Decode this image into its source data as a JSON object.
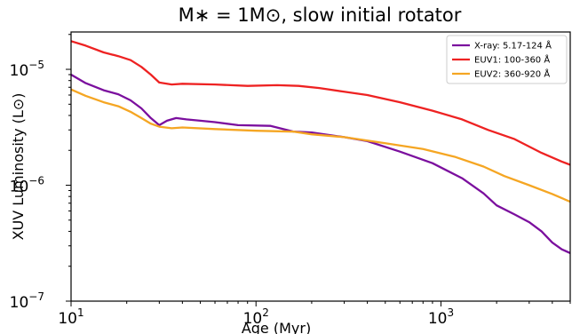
{
  "chart_data": {
    "type": "line",
    "title": "M∗ = 1M⊙, slow initial rotator",
    "xlabel": "Age (Myr)",
    "ylabel": "XUV Luminosity (L⊙)",
    "xscale": "log",
    "yscale": "log",
    "xlim": [
      10,
      5000
    ],
    "ylim": [
      1e-07,
      2.1e-05
    ],
    "grid": false,
    "legend_position": "top-right",
    "x_ticks": [
      {
        "value": 10,
        "base": "10",
        "exp": "1"
      },
      {
        "value": 100,
        "base": "10",
        "exp": "2"
      },
      {
        "value": 1000,
        "base": "10",
        "exp": "3"
      }
    ],
    "y_ticks": [
      {
        "value": 1e-07,
        "base": "10",
        "exp": "−7"
      },
      {
        "value": 1e-06,
        "base": "10",
        "exp": "−6"
      },
      {
        "value": 1e-05,
        "base": "10",
        "exp": "−5"
      }
    ],
    "series": [
      {
        "name": "X-ray: 5.17-124 Å",
        "color": "#7b0f9e",
        "points": [
          [
            10,
            9e-06
          ],
          [
            12,
            7.6e-06
          ],
          [
            15,
            6.6e-06
          ],
          [
            18,
            6.1e-06
          ],
          [
            21,
            5.4e-06
          ],
          [
            24,
            4.6e-06
          ],
          [
            27,
            3.8e-06
          ],
          [
            30,
            3.3e-06
          ],
          [
            33,
            3.6e-06
          ],
          [
            37,
            3.8e-06
          ],
          [
            42,
            3.7e-06
          ],
          [
            50,
            3.6e-06
          ],
          [
            60,
            3.5e-06
          ],
          [
            80,
            3.3e-06
          ],
          [
            120,
            3.25e-06
          ],
          [
            160,
            2.9e-06
          ],
          [
            200,
            2.85e-06
          ],
          [
            300,
            2.6e-06
          ],
          [
            400,
            2.4e-06
          ],
          [
            600,
            1.95e-06
          ],
          [
            900,
            1.55e-06
          ],
          [
            1300,
            1.15e-06
          ],
          [
            1700,
            8.5e-07
          ],
          [
            2000,
            6.7e-07
          ],
          [
            2500,
            5.6e-07
          ],
          [
            3000,
            4.8e-07
          ],
          [
            3500,
            4e-07
          ],
          [
            4000,
            3.2e-07
          ],
          [
            4500,
            2.8e-07
          ],
          [
            5000,
            2.6e-07
          ]
        ]
      },
      {
        "name": "EUV1: 100-360 Å",
        "color": "#ee2222",
        "points": [
          [
            10,
            1.75e-05
          ],
          [
            12,
            1.6e-05
          ],
          [
            15,
            1.4e-05
          ],
          [
            18,
            1.3e-05
          ],
          [
            21,
            1.2e-05
          ],
          [
            24,
            1.05e-05
          ],
          [
            27,
            9e-06
          ],
          [
            30,
            7.7e-06
          ],
          [
            35,
            7.4e-06
          ],
          [
            40,
            7.5e-06
          ],
          [
            60,
            7.4e-06
          ],
          [
            90,
            7.2e-06
          ],
          [
            130,
            7.3e-06
          ],
          [
            170,
            7.2e-06
          ],
          [
            220,
            6.9e-06
          ],
          [
            300,
            6.4e-06
          ],
          [
            400,
            6e-06
          ],
          [
            600,
            5.2e-06
          ],
          [
            900,
            4.4e-06
          ],
          [
            1300,
            3.7e-06
          ],
          [
            1800,
            3e-06
          ],
          [
            2500,
            2.5e-06
          ],
          [
            3500,
            1.9e-06
          ],
          [
            4500,
            1.6e-06
          ],
          [
            5000,
            1.5e-06
          ]
        ]
      },
      {
        "name": "EUV2: 360-920 Å",
        "color": "#f5a623",
        "points": [
          [
            10,
            6.7e-06
          ],
          [
            12,
            5.9e-06
          ],
          [
            15,
            5.2e-06
          ],
          [
            18,
            4.8e-06
          ],
          [
            21,
            4.3e-06
          ],
          [
            24,
            3.8e-06
          ],
          [
            27,
            3.4e-06
          ],
          [
            30,
            3.2e-06
          ],
          [
            35,
            3.1e-06
          ],
          [
            40,
            3.15e-06
          ],
          [
            60,
            3.05e-06
          ],
          [
            100,
            2.95e-06
          ],
          [
            160,
            2.9e-06
          ],
          [
            200,
            2.75e-06
          ],
          [
            300,
            2.6e-06
          ],
          [
            500,
            2.3e-06
          ],
          [
            800,
            2.05e-06
          ],
          [
            1200,
            1.75e-06
          ],
          [
            1700,
            1.45e-06
          ],
          [
            2200,
            1.2e-06
          ],
          [
            3000,
            1e-06
          ],
          [
            4000,
            8.4e-07
          ],
          [
            5000,
            7.2e-07
          ]
        ]
      }
    ]
  }
}
